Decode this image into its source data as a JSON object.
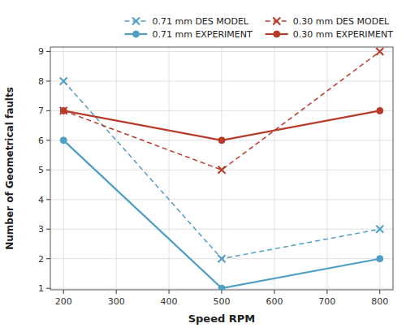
{
  "chart_data": {
    "type": "line",
    "xlabel": "Speed RPM",
    "ylabel": "Number of Geometrical faults",
    "x": [
      200,
      500,
      800
    ],
    "series": [
      {
        "name": "0.71 mm DES MODEL",
        "color": "#4F9EC4",
        "values": [
          8,
          2,
          3
        ],
        "marker": "x",
        "line_style": "dashed"
      },
      {
        "name": "0.30 mm DES MODEL",
        "color": "#B83A2A",
        "values": [
          7,
          5,
          9
        ],
        "marker": "x",
        "line_style": "dashed"
      },
      {
        "name": "0.71 mm EXPERIMENT",
        "color": "#4F9EC4",
        "values": [
          6,
          1,
          2
        ],
        "marker": "circle",
        "line_style": "solid"
      },
      {
        "name": "0.30 mm EXPERIMENT",
        "color": "#B83A2A",
        "values": [
          7,
          6,
          7
        ],
        "marker": "circle",
        "line_style": "solid"
      }
    ],
    "xlim": [
      175,
      825
    ],
    "ylim": [
      0.95,
      9.15
    ],
    "xticks": [
      200,
      300,
      400,
      500,
      600,
      700,
      800
    ],
    "yticks": [
      1,
      2,
      3,
      4,
      5,
      6,
      7,
      8,
      9
    ],
    "grid": true,
    "legend": "upper right"
  }
}
